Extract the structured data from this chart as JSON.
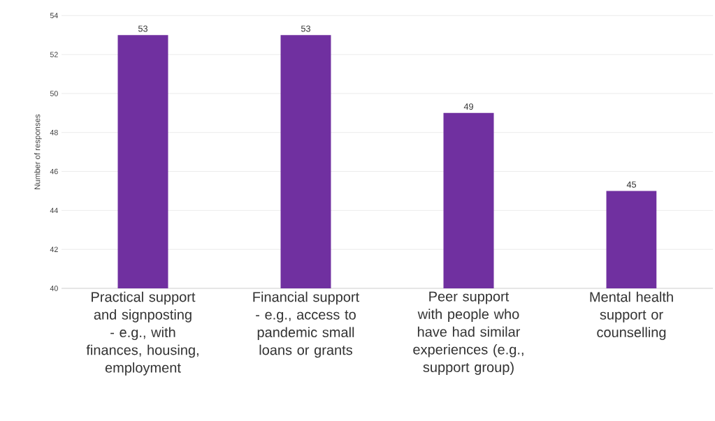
{
  "chart_data": {
    "type": "bar",
    "ylabel": "Number of responses",
    "categories": [
      "Practical support and signposting - e.g., with finances, housing, employment",
      "Financial support - e.g., access to pandemic small loans or grants",
      "Peer support with people who have had similar experiences (e.g., support group)",
      "Mental health support or counselling"
    ],
    "values": [
      53,
      53,
      49,
      45
    ],
    "color": "#7030a0",
    "ylim": [
      40,
      54
    ],
    "yticks": [
      40,
      42,
      44,
      46,
      48,
      50,
      52,
      54
    ],
    "grid": "y",
    "data_labels": true
  }
}
